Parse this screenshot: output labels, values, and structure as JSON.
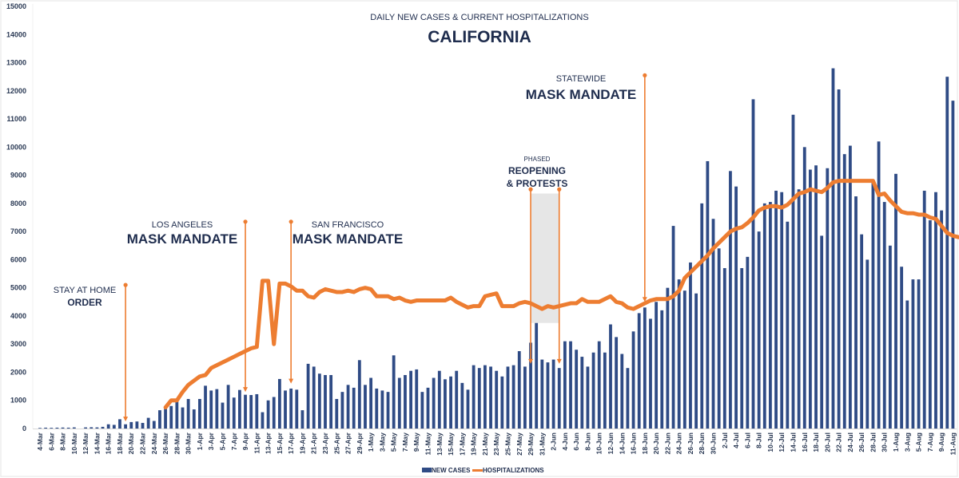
{
  "chart_data": {
    "type": "bar",
    "title": "DAILY NEW CASES & CURRENT HOSPITALIZATIONS",
    "subtitle": "CALIFORNIA",
    "xlabel": "",
    "ylabel": "",
    "ylim": [
      0,
      15000
    ],
    "yticks": [
      0,
      1000,
      2000,
      3000,
      4000,
      5000,
      6000,
      7000,
      8000,
      9000,
      10000,
      11000,
      12000,
      13000,
      14000,
      15000
    ],
    "grid": false,
    "legend_position": "bottom-center",
    "start_date": "4-Mar",
    "end_date": "11-Aug",
    "x_tick_labels": [
      "4-Mar",
      "6-Mar",
      "8-Mar",
      "10-Mar",
      "12-Mar",
      "14-Mar",
      "16-Mar",
      "18-Mar",
      "20-Mar",
      "22-Mar",
      "24-Mar",
      "26-Mar",
      "28-Mar",
      "30-Mar",
      "1-Apr",
      "3-Apr",
      "5-Apr",
      "7-Apr",
      "9-Apr",
      "11-Apr",
      "13-Apr",
      "15-Apr",
      "17-Apr",
      "19-Apr",
      "21-Apr",
      "23-Apr",
      "25-Apr",
      "27-Apr",
      "29-Apr",
      "1-May",
      "3-May",
      "5-May",
      "7-May",
      "9-May",
      "11-May",
      "13-May",
      "15-May",
      "17-May",
      "19-May",
      "21-May",
      "23-May",
      "25-May",
      "27-May",
      "29-May",
      "31-May",
      "2-Jun",
      "4-Jun",
      "6-Jun",
      "8-Jun",
      "10-Jun",
      "12-Jun",
      "14-Jun",
      "16-Jun",
      "18-Jun",
      "20-Jun",
      "22-Jun",
      "24-Jun",
      "26-Jun",
      "28-Jun",
      "30-Jun",
      "2-Jul",
      "4-Jul",
      "6-Jul",
      "8-Jul",
      "10-Jul",
      "12-Jul",
      "14-Jul",
      "16-Jul",
      "18-Jul",
      "20-Jul",
      "22-Jul",
      "24-Jul",
      "26-Jul",
      "28-Jul",
      "30-Jul",
      "1-Aug",
      "3-Aug",
      "5-Aug",
      "7-Aug",
      "9-Aug",
      "11-Aug"
    ],
    "series": [
      {
        "name": "NEW CASES",
        "type": "bar",
        "color": "#2f4b85",
        "values": [
          20,
          30,
          25,
          30,
          35,
          30,
          40,
          0,
          40,
          45,
          40,
          60,
          150,
          130,
          330,
          150,
          230,
          250,
          200,
          380,
          270,
          650,
          700,
          800,
          950,
          750,
          1050,
          680,
          1050,
          1520,
          1350,
          1400,
          920,
          1550,
          1100,
          1370,
          1200,
          1190,
          1220,
          580,
          1000,
          1120,
          1760,
          1350,
          1420,
          1380,
          650,
          2300,
          2200,
          1950,
          1900,
          1900,
          1050,
          1300,
          1550,
          1450,
          2430,
          1550,
          1800,
          1420,
          1350,
          1300,
          2600,
          1800,
          1900,
          2050,
          2100,
          1300,
          1450,
          1800,
          2050,
          1750,
          1850,
          2050,
          1620,
          1380,
          2250,
          2150,
          2250,
          2200,
          2050,
          1850,
          2200,
          2250,
          2750,
          2200,
          3050,
          3750,
          2450,
          2350,
          2450,
          2150,
          3100,
          3100,
          2800,
          2550,
          2200,
          2700,
          3100,
          2700,
          3700,
          3250,
          2650,
          2150,
          3450,
          4100,
          4300,
          3900,
          4500,
          4200,
          5000,
          7200,
          5300,
          4900,
          5900,
          4800,
          8000,
          9500,
          7450,
          6400,
          5700,
          9150,
          8600,
          5700,
          6100,
          11700,
          7000,
          8000,
          8050,
          8450,
          8400,
          7350,
          11150,
          8500,
          10000,
          9200,
          9350,
          6850,
          9250,
          12800,
          12050,
          9750,
          10050,
          8250,
          6900,
          6000,
          8750,
          10200,
          8050,
          6500,
          9050,
          5750,
          4550,
          5300,
          5300,
          8450,
          7400,
          8400,
          7750,
          12500,
          11650
        ]
      },
      {
        "name": "HOSPITALIZATIONS",
        "type": "line",
        "color": "#ed7d31",
        "start_index": 22,
        "values": [
          750,
          1000,
          1000,
          1300,
          1550,
          1700,
          1850,
          1900,
          2150,
          2250,
          2350,
          2450,
          2550,
          2650,
          2750,
          2850,
          2900,
          5250,
          5250,
          3000,
          5150,
          5150,
          5050,
          4900,
          4900,
          4700,
          4650,
          4850,
          4950,
          4900,
          4850,
          4850,
          4900,
          4850,
          4950,
          5000,
          4950,
          4700,
          4700,
          4700,
          4600,
          4650,
          4550,
          4500,
          4550,
          4550,
          4550,
          4550,
          4550,
          4550,
          4650,
          4500,
          4400,
          4300,
          4350,
          4350,
          4700,
          4750,
          4800,
          4350,
          4350,
          4350,
          4450,
          4500,
          4450,
          4350,
          4250,
          4350,
          4300,
          4350,
          4400,
          4450,
          4450,
          4600,
          4500,
          4500,
          4500,
          4600,
          4700,
          4500,
          4450,
          4300,
          4250,
          4350,
          4450,
          4550,
          4600,
          4600,
          4600,
          4700,
          4900,
          5350,
          5550,
          5750,
          5950,
          6150,
          6400,
          6600,
          6800,
          7000,
          7100,
          7150,
          7300,
          7500,
          7750,
          7850,
          7900,
          7900,
          7850,
          7950,
          8150,
          8350,
          8400,
          8500,
          8450,
          8400,
          8550,
          8750,
          8800,
          8800,
          8800,
          8800,
          8800,
          8800,
          8800,
          8300,
          8350,
          8100,
          7900,
          7700,
          7650,
          7650,
          7600,
          7600,
          7500,
          7450,
          7200,
          6950,
          6850,
          6800,
          6750,
          6700,
          6650
        ]
      }
    ],
    "annotations": [
      {
        "small": "STAY AT HOME",
        "big": "ORDER",
        "date_index": 15,
        "top_value": 5100,
        "bottom_value": 250
      },
      {
        "small": "LOS ANGELES",
        "big": "MASK MANDATE",
        "date_index": 36,
        "top_value": 7350,
        "bottom_value": 1300
      },
      {
        "small": "SAN FRANCISCO",
        "big": "MASK MANDATE",
        "date_index": 44,
        "top_value": 7350,
        "bottom_value": 1600
      },
      {
        "small": "PHASED",
        "big": "REOPENING",
        "big2": "& PROTESTS",
        "date_index": 86,
        "date_index_end": 91,
        "top_value": 8500,
        "bottom_value": 2300,
        "shade_top": 8350,
        "shade_bottom": 3750
      },
      {
        "small": "STATEWIDE",
        "big": "MASK MANDATE",
        "date_index": 106,
        "top_value": 12550,
        "bottom_value": 4500
      }
    ]
  }
}
